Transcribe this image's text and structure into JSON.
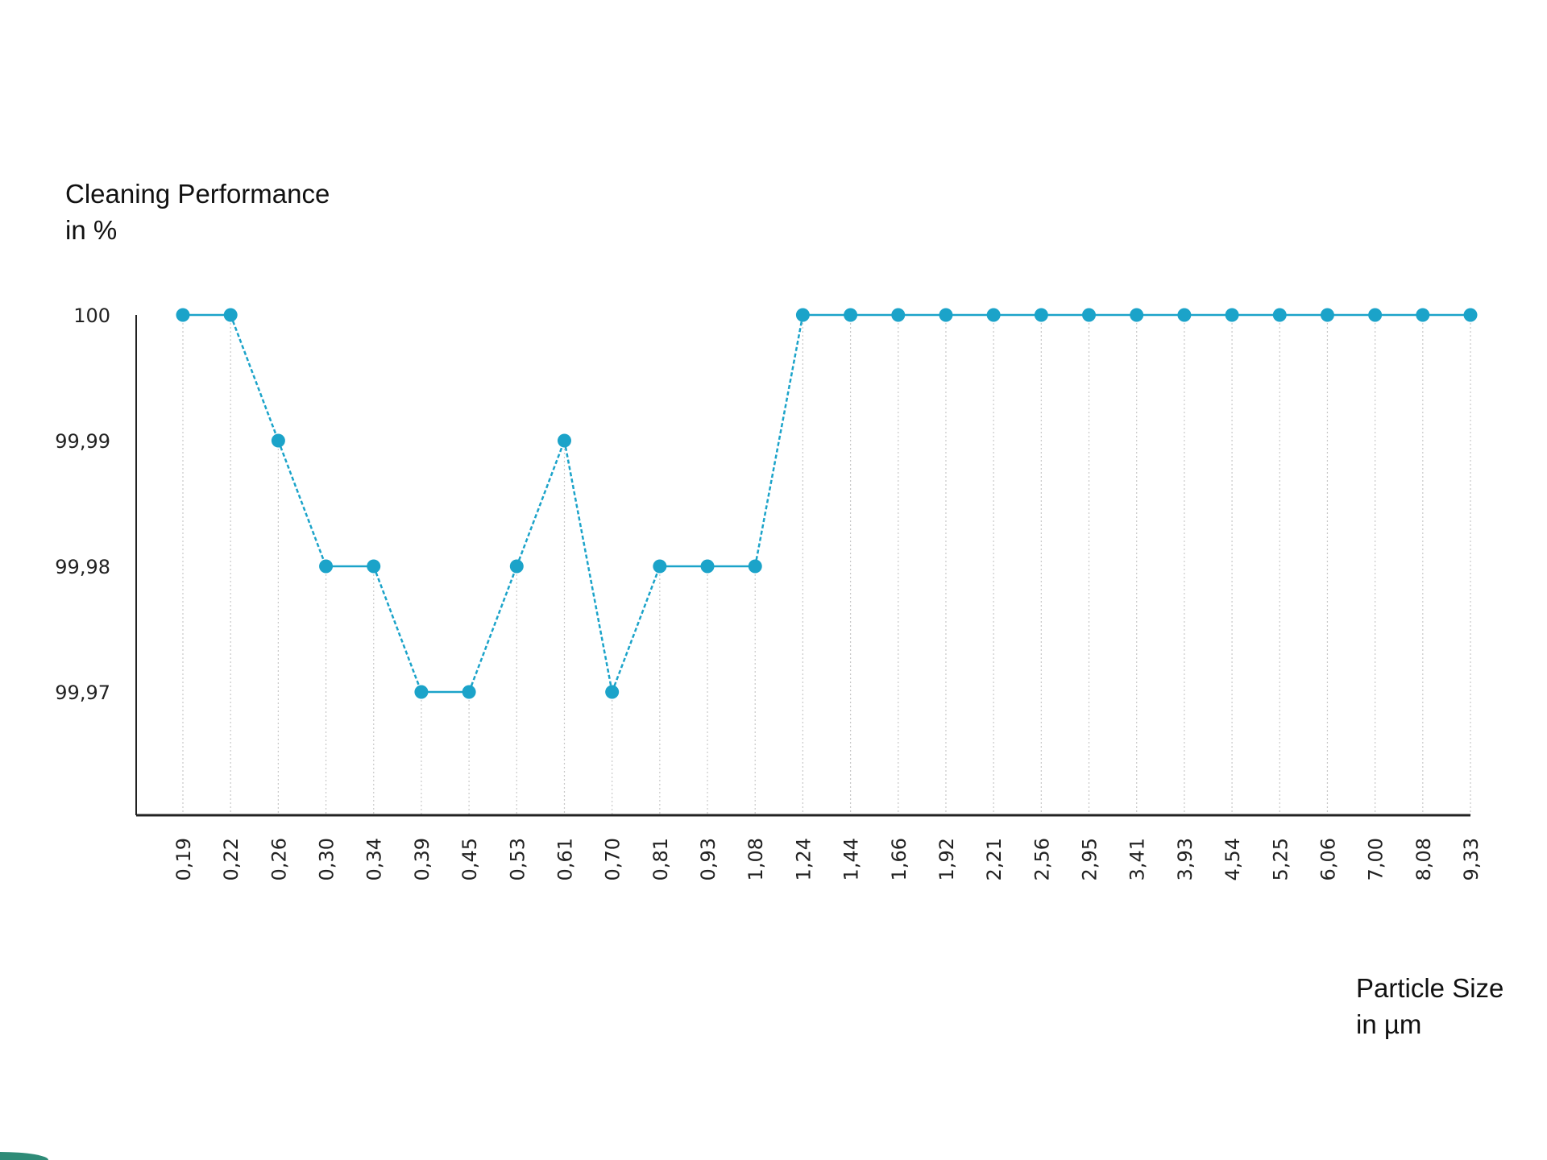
{
  "chart_data": {
    "type": "line",
    "ylabel": [
      "Cleaning Performance",
      "in %"
    ],
    "xlabel": [
      "Particle Size",
      "in µm"
    ],
    "categories": [
      "0,19",
      "0,22",
      "0,26",
      "0,30",
      "0,34",
      "0,39",
      "0,45",
      "0,53",
      "0,61",
      "0,70",
      "0,81",
      "0,93",
      "1,08",
      "1,24",
      "1,44",
      "1,66",
      "1,92",
      "2,21",
      "2,56",
      "2,95",
      "3,41",
      "3,93",
      "4,54",
      "5,25",
      "6,06",
      "7,00",
      "8,08",
      "9,33"
    ],
    "series": [
      {
        "values": [
          100,
          100,
          99.99,
          99.98,
          99.98,
          99.97,
          99.97,
          99.98,
          99.99,
          99.97,
          99.98,
          99.98,
          99.98,
          100,
          100,
          100,
          100,
          100,
          100,
          100,
          100,
          100,
          100,
          100,
          100,
          100,
          100,
          100
        ]
      }
    ],
    "yticks": [
      {
        "value": 100,
        "label": "100"
      },
      {
        "value": 99.99,
        "label": "99,99"
      },
      {
        "value": 99.98,
        "label": "99,98"
      },
      {
        "value": 99.97,
        "label": "99,97"
      }
    ],
    "ylim": [
      99.96,
      100
    ],
    "grid": "vertical dotted lines at each category",
    "legend": "none",
    "colors": {
      "series": "#1ba3c9",
      "axis": "#222222",
      "grid": "#c8c8c8",
      "accent": "#2e8b77"
    }
  }
}
